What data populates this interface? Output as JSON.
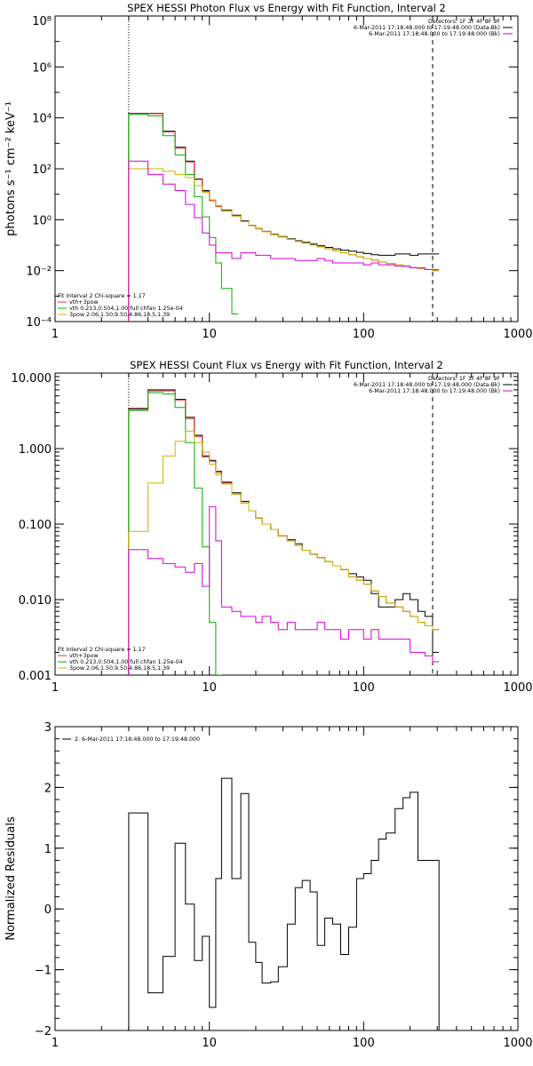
{
  "chart_data": [
    {
      "type": "line",
      "title": "SPEX HESSI Photon Flux vs Energy with Fit Function, Interval 2",
      "ylabel": "photons s⁻¹ cm⁻² keV⁻¹",
      "x_scale": "log",
      "y_scale": "log",
      "xlim": [
        1,
        1000
      ],
      "ylim": [
        0.0001,
        100000000
      ],
      "x_tick_labels": [
        "1",
        "10",
        "100",
        "1000"
      ],
      "y_tick_labels": [
        "10⁻⁴",
        "10⁻²",
        "10⁰",
        "10²",
        "10⁴",
        "10⁶",
        "10⁸"
      ],
      "legend_top_right": [
        {
          "text": "Detectors: 1F 3F 4F 8F 9F",
          "color": "",
          "marker": false
        },
        {
          "text": "6-Mar-2011 17:18:48.000 to 17:19:48.000 (Data-Bk)",
          "color": "#000000",
          "marker": true
        },
        {
          "text": "6-Mar-2011 17:18:48.000 to 17:19:48.000 (Bk)",
          "color": "#dd00dd",
          "marker": true
        }
      ],
      "legend_bottom_left": [
        {
          "text": "Fit Interval 2   Chi-square = 1.17",
          "color": ""
        },
        {
          "text": "vth+3pow",
          "color": "#e03030"
        },
        {
          "text": "vth 0.213,0.504,1.00  full chfan 1.25e-04",
          "color": "#00b000"
        },
        {
          "text": "3pow 2.06,1.50,9.50,4.86,18.5,1.39",
          "color": "#c8b400"
        }
      ],
      "vlines": [
        {
          "x": 3,
          "style": "dotted"
        },
        {
          "x": 280,
          "style": "dashed"
        }
      ],
      "series": [
        {
          "color": "#000000",
          "x": [
            3,
            4,
            5,
            6,
            7,
            8,
            9,
            10,
            11,
            12,
            14,
            16,
            18,
            20,
            22,
            25,
            28,
            32,
            36,
            40,
            45,
            50,
            56,
            63,
            71,
            80,
            90,
            100,
            112,
            125,
            140,
            160,
            180,
            200,
            225,
            250,
            280
          ],
          "values": [
            15000,
            15000,
            3000,
            700,
            200,
            40,
            14,
            6,
            3.5,
            2.4,
            1.5,
            0.9,
            0.6,
            0.45,
            0.35,
            0.27,
            0.22,
            0.18,
            0.15,
            0.13,
            0.11,
            0.095,
            0.082,
            0.072,
            0.064,
            0.058,
            0.052,
            0.047,
            0.042,
            0.04,
            0.04,
            0.045,
            0.045,
            0.04,
            0.045,
            0.045,
            0.045
          ]
        },
        {
          "color": "#e03030",
          "x": [
            3,
            4,
            5,
            6,
            7,
            8,
            9,
            10,
            11,
            12,
            14,
            16,
            18,
            20,
            22,
            25,
            28,
            32,
            36,
            40,
            45,
            50,
            56,
            63,
            71,
            80,
            90,
            100,
            112,
            125,
            140,
            160,
            180,
            200,
            225,
            250,
            280
          ],
          "values": [
            14500,
            14500,
            2800,
            650,
            185,
            38,
            13,
            5.6,
            3.3,
            2.2,
            1.4,
            0.85,
            0.58,
            0.44,
            0.34,
            0.26,
            0.21,
            0.17,
            0.14,
            0.12,
            0.1,
            0.086,
            0.072,
            0.06,
            0.05,
            0.042,
            0.035,
            0.03,
            0.026,
            0.022,
            0.019,
            0.017,
            0.015,
            0.013,
            0.012,
            0.011,
            0.01
          ]
        },
        {
          "color": "#00b000",
          "x": [
            3,
            4,
            5,
            6,
            7,
            8,
            9,
            10,
            11,
            12,
            14
          ],
          "values": [
            14000,
            12000,
            2000,
            350,
            60,
            8,
            1.3,
            0.2,
            0.02,
            0.002,
            0.0002
          ]
        },
        {
          "color": "#c8b400",
          "x": [
            3,
            4,
            5,
            6,
            7,
            8,
            9,
            10,
            11,
            12,
            14,
            16,
            18,
            20,
            22,
            25,
            28,
            32,
            36,
            40,
            45,
            50,
            56,
            63,
            71,
            80,
            90,
            100,
            112,
            125,
            140,
            160,
            180,
            200,
            225,
            250,
            280
          ],
          "values": [
            100,
            100,
            80,
            60,
            45,
            22,
            12,
            6,
            3.5,
            2.3,
            1.4,
            0.85,
            0.58,
            0.44,
            0.34,
            0.26,
            0.21,
            0.17,
            0.14,
            0.12,
            0.1,
            0.086,
            0.072,
            0.06,
            0.05,
            0.042,
            0.035,
            0.03,
            0.026,
            0.022,
            0.019,
            0.017,
            0.015,
            0.013,
            0.012,
            0.011,
            0.01
          ]
        },
        {
          "color": "#dd00dd",
          "x": [
            3,
            4,
            5,
            6,
            7,
            8,
            9,
            10,
            11,
            12,
            14,
            16,
            18,
            20,
            22,
            25,
            28,
            32,
            36,
            40,
            45,
            50,
            56,
            63,
            71,
            80,
            90,
            100,
            112,
            125,
            140,
            160,
            180,
            200,
            225,
            250,
            280
          ],
          "values": [
            200,
            60,
            25,
            14,
            4,
            1.2,
            0.3,
            0.1,
            0.05,
            0.05,
            0.03,
            0.05,
            0.05,
            0.04,
            0.04,
            0.03,
            0.03,
            0.03,
            0.025,
            0.025,
            0.025,
            0.03,
            0.025,
            0.02,
            0.02,
            0.02,
            0.02,
            0.017,
            0.02,
            0.017,
            0.017,
            0.015,
            0.015,
            0.013,
            0.013,
            0.011,
            0.011
          ]
        }
      ]
    },
    {
      "type": "line",
      "title": "SPEX HESSI Count Flux vs Energy with Fit Function, Interval 2",
      "ylabel": "",
      "x_scale": "log",
      "y_scale": "log",
      "xlim": [
        1,
        1000
      ],
      "ylim": [
        0.001,
        10
      ],
      "x_tick_labels": [
        "1",
        "10",
        "100",
        "1000"
      ],
      "y_tick_labels": [
        "0.001",
        "0.010",
        "0.100",
        "1.000",
        "10.000"
      ],
      "legend_top_right": [
        {
          "text": "Detectors: 1F 3F 4F 8F 9F",
          "color": "",
          "marker": false
        },
        {
          "text": "6-Mar-2011 17:18:48.000 to 17:19:48.000 (Data-Bk)",
          "color": "#000000",
          "marker": true
        },
        {
          "text": "6-Mar-2011 17:18:48.000 to 17:19:48.000 (Bk)",
          "color": "#dd00dd",
          "marker": true
        }
      ],
      "legend_bottom_left": [
        {
          "text": "Fit Interval 2   Chi-square = 1.17",
          "color": ""
        },
        {
          "text": "vth+3pow",
          "color": "#e03030"
        },
        {
          "text": "vth 0.213,0.504,1.00  full chfan 1.25e-04",
          "color": "#00b000"
        },
        {
          "text": "3pow 2.06,1.50,9.50,4.86,18.5,1.39",
          "color": "#c8b400"
        }
      ],
      "vlines": [
        {
          "x": 3,
          "style": "dotted"
        },
        {
          "x": 280,
          "style": "dashed"
        }
      ],
      "series": [
        {
          "color": "#000000",
          "x": [
            3,
            4,
            5,
            6,
            7,
            8,
            9,
            10,
            11,
            12,
            14,
            16,
            18,
            20,
            22,
            25,
            28,
            32,
            36,
            40,
            45,
            50,
            56,
            63,
            71,
            80,
            90,
            100,
            112,
            125,
            140,
            160,
            180,
            200,
            225,
            250,
            280
          ],
          "values": [
            3.4,
            6,
            6,
            4.5,
            2.6,
            1.5,
            0.8,
            0.7,
            0.5,
            0.36,
            0.26,
            0.2,
            0.15,
            0.12,
            0.1,
            0.085,
            0.07,
            0.062,
            0.055,
            0.045,
            0.04,
            0.036,
            0.032,
            0.028,
            0.025,
            0.022,
            0.02,
            0.018,
            0.012,
            0.008,
            0.008,
            0.01,
            0.012,
            0.01,
            0.007,
            0.006,
            0.002
          ]
        },
        {
          "color": "#e03030",
          "x": [
            3,
            4,
            5,
            6,
            7,
            8,
            9,
            10,
            11,
            12,
            14,
            16,
            18,
            20,
            22,
            25,
            28,
            32,
            36,
            40,
            45,
            50,
            56,
            63,
            71,
            80,
            90,
            100,
            112,
            125,
            140,
            160,
            180,
            200,
            225,
            250,
            280
          ],
          "values": [
            3.3,
            5.8,
            5.8,
            4.4,
            2.5,
            1.45,
            0.78,
            0.68,
            0.48,
            0.35,
            0.25,
            0.19,
            0.15,
            0.12,
            0.1,
            0.085,
            0.07,
            0.06,
            0.052,
            0.045,
            0.04,
            0.036,
            0.032,
            0.028,
            0.025,
            0.02,
            0.018,
            0.016,
            0.013,
            0.011,
            0.009,
            0.008,
            0.007,
            0.006,
            0.005,
            0.0045,
            0.004
          ]
        },
        {
          "color": "#00b000",
          "x": [
            3,
            4,
            5,
            6,
            7,
            8,
            9,
            10,
            11
          ],
          "values": [
            3.2,
            5.5,
            5.3,
            3.5,
            1.2,
            0.3,
            0.05,
            0.005,
            0.0005
          ]
        },
        {
          "color": "#c8b400",
          "x": [
            3,
            4,
            5,
            6,
            7,
            8,
            9,
            10,
            11,
            12,
            14,
            16,
            18,
            20,
            22,
            25,
            28,
            32,
            36,
            40,
            45,
            50,
            56,
            63,
            71,
            80,
            90,
            100,
            112,
            125,
            140,
            160,
            180,
            200,
            225,
            250,
            280
          ],
          "values": [
            0.08,
            0.35,
            0.8,
            1.25,
            1.7,
            1.2,
            0.9,
            0.62,
            0.45,
            0.34,
            0.25,
            0.19,
            0.15,
            0.12,
            0.1,
            0.085,
            0.07,
            0.06,
            0.052,
            0.045,
            0.04,
            0.036,
            0.032,
            0.028,
            0.025,
            0.02,
            0.018,
            0.016,
            0.013,
            0.011,
            0.009,
            0.008,
            0.007,
            0.006,
            0.005,
            0.0045,
            0.004
          ]
        },
        {
          "color": "#dd00dd",
          "x": [
            3,
            4,
            5,
            6,
            7,
            8,
            9,
            10,
            11,
            12,
            14,
            16,
            18,
            20,
            22,
            25,
            28,
            32,
            36,
            40,
            45,
            50,
            56,
            63,
            71,
            80,
            90,
            100,
            112,
            125,
            140,
            160,
            180,
            200,
            225,
            250,
            280
          ],
          "values": [
            0.046,
            0.035,
            0.03,
            0.027,
            0.023,
            0.03,
            0.015,
            0.17,
            0.06,
            0.008,
            0.007,
            0.006,
            0.006,
            0.005,
            0.006,
            0.005,
            0.004,
            0.005,
            0.004,
            0.004,
            0.004,
            0.005,
            0.004,
            0.004,
            0.003,
            0.004,
            0.004,
            0.003,
            0.004,
            0.003,
            0.003,
            0.003,
            0.003,
            0.002,
            0.002,
            0.0018,
            0.0015
          ]
        }
      ]
    },
    {
      "type": "line",
      "title": "",
      "ylabel": "Normalized Residuals",
      "x_scale": "log",
      "y_scale": "linear",
      "xlim": [
        1,
        1000
      ],
      "ylim": [
        -2,
        3
      ],
      "x_tick_labels": [
        "1",
        "10",
        "100",
        "1000"
      ],
      "y_tick_labels": [
        "−2",
        "−1",
        "0",
        "1",
        "2",
        "3"
      ],
      "legend_top_left": [
        {
          "text": "2. 6-Mar-2011 17:18:48.000 to 17:19:48.000",
          "color": "#000000"
        }
      ],
      "series": [
        {
          "color": "#000000",
          "x": [
            3,
            4,
            5,
            6,
            7,
            8,
            9,
            10,
            11,
            12,
            14,
            16,
            18,
            20,
            22,
            25,
            28,
            32,
            36,
            40,
            45,
            50,
            56,
            63,
            71,
            80,
            90,
            100,
            112,
            125,
            140,
            160,
            180,
            200,
            225,
            250,
            280
          ],
          "values": [
            1.58,
            -1.38,
            -0.78,
            1.08,
            0.08,
            -0.85,
            -0.45,
            -1.62,
            0.5,
            2.15,
            0.5,
            1.9,
            -0.55,
            -0.88,
            -1.22,
            -1.2,
            -0.95,
            -0.25,
            0.35,
            0.47,
            0.28,
            -0.6,
            -0.15,
            -0.25,
            -0.75,
            -0.3,
            0.5,
            0.58,
            0.8,
            1.15,
            1.25,
            1.65,
            1.83,
            1.92,
            0.8,
            0.8,
            0.8
          ]
        }
      ]
    }
  ]
}
